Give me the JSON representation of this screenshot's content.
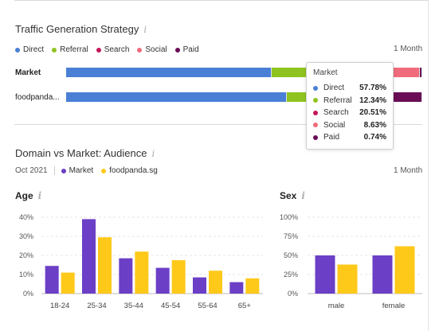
{
  "colors": {
    "direct": "#4a7fd6",
    "referral": "#8fc31f",
    "search": "#c2185b",
    "social": "#f06b7b",
    "paid": "#6a0d55",
    "market": "#6b3fc6",
    "domain": "#ffc91a"
  },
  "traffic": {
    "title": "Traffic Generation Strategy",
    "info_icon": "i",
    "period": "1 Month",
    "legend": [
      {
        "label": "Direct",
        "color": "#4a7fd6"
      },
      {
        "label": "Referral",
        "color": "#8fc31f"
      },
      {
        "label": "Search",
        "color": "#c2185b"
      },
      {
        "label": "Social",
        "color": "#f06b7b"
      },
      {
        "label": "Paid",
        "color": "#6a0d55"
      }
    ],
    "rows": [
      {
        "label": "Market",
        "segments": [
          {
            "name": "Direct",
            "value": 57.78,
            "color": "#4a7fd6"
          },
          {
            "name": "Referral",
            "value": 12.34,
            "color": "#8fc31f"
          },
          {
            "name": "Search",
            "value": 20.51,
            "color": "#c2185b"
          },
          {
            "name": "Social",
            "value": 8.63,
            "color": "#f06b7b"
          },
          {
            "name": "Paid",
            "value": 0.74,
            "color": "#6a0d55"
          }
        ]
      },
      {
        "label": "foodpanda...",
        "segments": [
          {
            "name": "Direct",
            "value": 62.0,
            "color": "#4a7fd6"
          },
          {
            "name": "Referral",
            "value": 9.0,
            "color": "#8fc31f"
          },
          {
            "name": "Search",
            "value": 17.0,
            "color": "#c2185b"
          },
          {
            "name": "Social",
            "value": 3.0,
            "color": "#f06b7b"
          },
          {
            "name": "Paid",
            "value": 9.0,
            "color": "#6a0d55"
          }
        ]
      }
    ],
    "tooltip": {
      "title": "Market",
      "rows": [
        {
          "name": "Direct",
          "value": "57.78%",
          "color": "#4a7fd6"
        },
        {
          "name": "Referral",
          "value": "12.34%",
          "color": "#8fc31f"
        },
        {
          "name": "Search",
          "value": "20.51%",
          "color": "#c2185b"
        },
        {
          "name": "Social",
          "value": "8.63%",
          "color": "#f06b7b"
        },
        {
          "name": "Paid",
          "value": "0.74%",
          "color": "#6a0d55"
        }
      ]
    }
  },
  "audience": {
    "title": "Domain vs Market: Audience",
    "info_icon": "i",
    "date": "Oct 2021",
    "period": "1 Month",
    "legend": [
      {
        "label": "Market",
        "color": "#6b3fc6"
      },
      {
        "label": "foodpanda.sg",
        "color": "#ffc91a"
      }
    ]
  },
  "chart_data": [
    {
      "type": "bar",
      "title": "Age",
      "categories": [
        "18-24",
        "25-34",
        "35-44",
        "45-54",
        "55-64",
        "65+"
      ],
      "series": [
        {
          "name": "Market",
          "values": [
            14.5,
            39,
            18.5,
            13.5,
            8.5,
            6
          ],
          "color": "#6b3fc6"
        },
        {
          "name": "foodpanda.sg",
          "values": [
            11,
            29.5,
            22,
            17.5,
            12,
            8
          ],
          "color": "#ffc91a"
        }
      ],
      "yticks": [
        "0%",
        "10%",
        "20%",
        "30%",
        "40%"
      ],
      "ylim": [
        0,
        40
      ]
    },
    {
      "type": "bar",
      "title": "Sex",
      "categories": [
        "male",
        "female"
      ],
      "series": [
        {
          "name": "Market",
          "values": [
            50,
            50
          ],
          "color": "#6b3fc6"
        },
        {
          "name": "foodpanda.sg",
          "values": [
            38,
            62
          ],
          "color": "#ffc91a"
        }
      ],
      "yticks": [
        "0%",
        "25%",
        "50%",
        "75%",
        "100%"
      ],
      "ylim": [
        0,
        100
      ]
    }
  ]
}
